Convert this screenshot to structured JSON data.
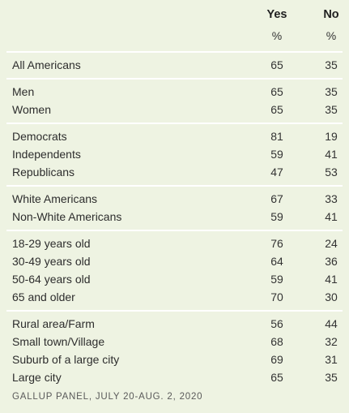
{
  "chart_data": {
    "type": "table",
    "columns": [
      {
        "header": "Yes",
        "unit": "%"
      },
      {
        "header": "No",
        "unit": "%"
      }
    ],
    "groups": [
      {
        "rows": [
          {
            "label": "All Americans",
            "yes": 65,
            "no": 35
          }
        ]
      },
      {
        "rows": [
          {
            "label": "Men",
            "yes": 65,
            "no": 35
          },
          {
            "label": "Women",
            "yes": 65,
            "no": 35
          }
        ]
      },
      {
        "rows": [
          {
            "label": "Democrats",
            "yes": 81,
            "no": 19
          },
          {
            "label": "Independents",
            "yes": 59,
            "no": 41
          },
          {
            "label": "Republicans",
            "yes": 47,
            "no": 53
          }
        ]
      },
      {
        "rows": [
          {
            "label": "White Americans",
            "yes": 67,
            "no": 33
          },
          {
            "label": "Non-White Americans",
            "yes": 59,
            "no": 41
          }
        ]
      },
      {
        "rows": [
          {
            "label": "18-29 years old",
            "yes": 76,
            "no": 24
          },
          {
            "label": "30-49 years old",
            "yes": 64,
            "no": 36
          },
          {
            "label": "50-64 years old",
            "yes": 59,
            "no": 41
          },
          {
            "label": "65 and older",
            "yes": 70,
            "no": 30
          }
        ]
      },
      {
        "rows": [
          {
            "label": "Rural area/Farm",
            "yes": 56,
            "no": 44
          },
          {
            "label": "Small town/Village",
            "yes": 68,
            "no": 32
          },
          {
            "label": "Suburb of a large city",
            "yes": 69,
            "no": 31
          },
          {
            "label": "Large city",
            "yes": 65,
            "no": 35
          }
        ]
      }
    ],
    "source": "GALLUP PANEL, JULY 20-AUG. 2, 2020"
  },
  "colors": {
    "background": "#eef3e2",
    "divider": "#ffffff",
    "text": "#2b2b2b"
  }
}
